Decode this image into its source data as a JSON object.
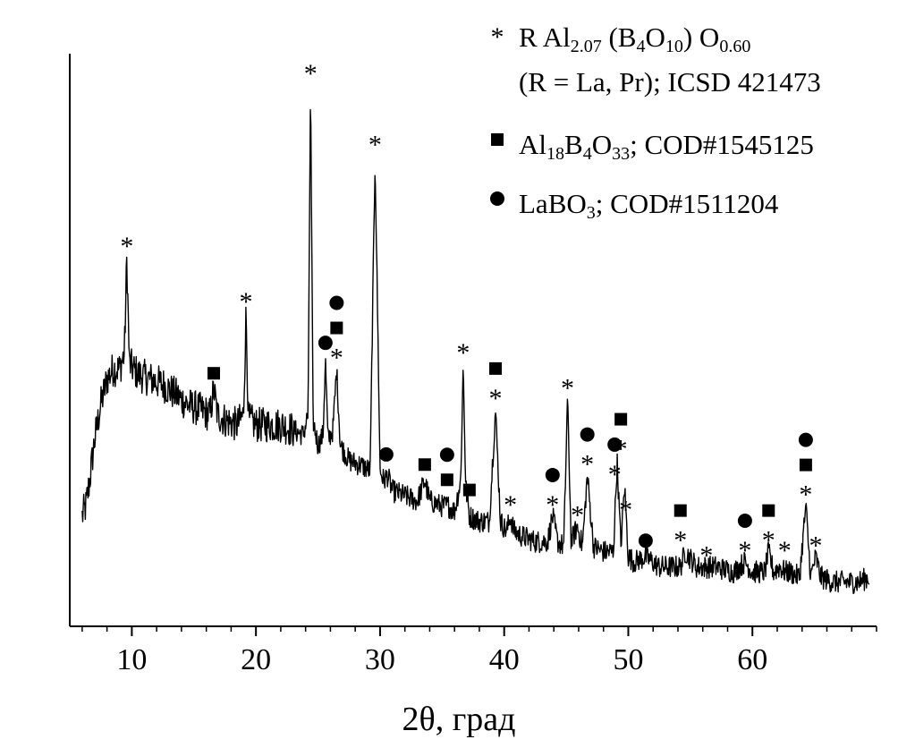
{
  "chart_data": {
    "type": "line",
    "xlabel": "2θ, град",
    "ylabel": "",
    "xlim": [
      5,
      70
    ],
    "ylim": [
      0,
      100
    ],
    "x_ticks": [
      10,
      20,
      30,
      40,
      50,
      60
    ],
    "x_tick_labels": [
      "10",
      "20",
      "30",
      "40",
      "50",
      "60"
    ],
    "x_minor_step": 2,
    "y_ticks_shown": false,
    "grid": false,
    "legend_position": "top-right",
    "series": [
      {
        "color": "#000000",
        "x": [
          6.0,
          6.3,
          6.6,
          7.0,
          7.5,
          8.0,
          8.5,
          9.0,
          9.4,
          9.6,
          9.8,
          10.5,
          11.5,
          12.5,
          13.5,
          14.5,
          15.5,
          16.3,
          16.6,
          16.9,
          17.5,
          18.5,
          19.0,
          19.2,
          19.4,
          20.0,
          21.0,
          22.0,
          23.0,
          23.8,
          24.2,
          24.4,
          24.6,
          25.0,
          25.4,
          25.6,
          25.8,
          26.2,
          26.5,
          26.8,
          27.5,
          28.5,
          29.2,
          29.6,
          30.0,
          30.3,
          30.6,
          31.0,
          32.0,
          33.0,
          33.6,
          34.0,
          35.0,
          35.5,
          36.0,
          36.5,
          36.7,
          36.9,
          37.2,
          38.0,
          38.8,
          39.3,
          39.7,
          40.2,
          40.5,
          40.8,
          41.5,
          42.5,
          43.5,
          43.9,
          44.3,
          44.8,
          45.1,
          45.4,
          45.9,
          46.3,
          46.7,
          47.2,
          48.0,
          48.8,
          49.1,
          49.4,
          49.7,
          50.0,
          50.5,
          51.4,
          52.5,
          53.5,
          54.2,
          54.6,
          55.5,
          56.3,
          57.0,
          58.5,
          59.4,
          60.0,
          61.0,
          61.3,
          61.7,
          62.2,
          62.6,
          63.0,
          63.8,
          64.3,
          64.7,
          65.1,
          65.5,
          66.5,
          67.5,
          68.5,
          69.4
        ],
        "y": [
          15,
          17,
          22,
          30,
          37,
          42,
          44,
          44,
          47,
          66,
          45,
          43,
          42,
          41,
          39,
          37,
          36,
          35,
          40,
          35,
          34,
          33,
          35,
          55,
          34,
          33,
          33,
          33,
          32,
          31,
          35,
          100,
          34,
          29,
          31,
          46,
          30,
          32,
          44,
          29,
          26,
          25,
          24,
          86,
          24,
          22,
          23,
          20,
          19,
          18,
          22,
          18,
          17,
          17,
          16,
          22,
          45,
          21,
          15,
          14,
          14,
          36,
          14,
          12,
          15,
          12,
          11,
          10,
          10,
          15,
          10,
          9,
          38,
          10,
          13,
          9,
          23,
          9,
          8,
          8,
          26,
          9,
          21,
          7,
          6,
          7,
          5,
          5,
          5,
          8,
          5,
          5,
          5,
          4,
          6,
          4,
          4,
          8,
          4,
          5,
          4,
          4,
          3,
          17,
          3,
          7,
          3,
          2,
          2,
          2,
          3
        ]
      }
    ],
    "peak_markers": [
      {
        "x": 9.6,
        "y": 66,
        "symbols": [
          "*"
        ]
      },
      {
        "x": 16.6,
        "y": 40,
        "symbols": [
          "■"
        ]
      },
      {
        "x": 19.2,
        "y": 55,
        "symbols": [
          "*"
        ]
      },
      {
        "x": 24.4,
        "y": 100,
        "symbols": [
          "*"
        ]
      },
      {
        "x": 25.6,
        "y": 46,
        "symbols": [
          "●"
        ]
      },
      {
        "x": 26.5,
        "y": 44,
        "symbols": [
          "*",
          "■",
          "●"
        ]
      },
      {
        "x": 29.6,
        "y": 86,
        "symbols": [
          "*"
        ]
      },
      {
        "x": 30.5,
        "y": 24,
        "symbols": [
          "●"
        ]
      },
      {
        "x": 33.6,
        "y": 22,
        "symbols": [
          "■"
        ]
      },
      {
        "x": 35.4,
        "y": 19,
        "symbols": [
          "■",
          "●"
        ]
      },
      {
        "x": 36.7,
        "y": 45,
        "symbols": [
          "*"
        ]
      },
      {
        "x": 37.2,
        "y": 17,
        "symbols": [
          "■"
        ]
      },
      {
        "x": 39.3,
        "y": 36,
        "symbols": [
          "*",
          "■"
        ]
      },
      {
        "x": 40.5,
        "y": 15,
        "symbols": [
          "*"
        ]
      },
      {
        "x": 43.9,
        "y": 15,
        "symbols": [
          "*",
          "●"
        ]
      },
      {
        "x": 45.1,
        "y": 38,
        "symbols": [
          "*"
        ]
      },
      {
        "x": 45.9,
        "y": 13,
        "symbols": [
          "*"
        ]
      },
      {
        "x": 46.7,
        "y": 23,
        "symbols": [
          "*",
          "●"
        ]
      },
      {
        "x": 48.9,
        "y": 21,
        "symbols": [
          "*",
          "●"
        ]
      },
      {
        "x": 49.4,
        "y": 26,
        "symbols": [
          "*",
          "■"
        ]
      },
      {
        "x": 49.8,
        "y": 14,
        "symbols": [
          "*"
        ]
      },
      {
        "x": 51.4,
        "y": 7,
        "symbols": [
          "●"
        ]
      },
      {
        "x": 54.2,
        "y": 8,
        "symbols": [
          "*",
          "■"
        ]
      },
      {
        "x": 56.3,
        "y": 5,
        "symbols": [
          "*"
        ]
      },
      {
        "x": 59.4,
        "y": 6,
        "symbols": [
          "*",
          "●"
        ]
      },
      {
        "x": 61.3,
        "y": 8,
        "symbols": [
          "*",
          "■"
        ]
      },
      {
        "x": 62.6,
        "y": 6,
        "symbols": [
          "*"
        ]
      },
      {
        "x": 64.3,
        "y": 17,
        "symbols": [
          "*",
          "■",
          "●"
        ]
      },
      {
        "x": 65.1,
        "y": 7,
        "symbols": [
          "*"
        ]
      }
    ],
    "legend": [
      {
        "symbol": "*",
        "parts": [
          {
            "t": "R Al",
            "s": ""
          },
          {
            "t": "2.07",
            "s": "sub"
          },
          {
            "t": " (B",
            "s": ""
          },
          {
            "t": "4",
            "s": "sub"
          },
          {
            "t": "O",
            "s": ""
          },
          {
            "t": "10",
            "s": "sub"
          },
          {
            "t": ") O",
            "s": ""
          },
          {
            "t": "0.60",
            "s": "sub"
          }
        ]
      },
      {
        "symbol": "",
        "parts": [
          {
            "t": "(R = La, Pr); ICSD 421473",
            "s": ""
          }
        ]
      },
      {
        "symbol": "■",
        "parts": [
          {
            "t": "Al",
            "s": ""
          },
          {
            "t": "18",
            "s": "sub"
          },
          {
            "t": "B",
            "s": ""
          },
          {
            "t": "4",
            "s": "sub"
          },
          {
            "t": "O",
            "s": ""
          },
          {
            "t": "33",
            "s": "sub"
          },
          {
            "t": "; COD#1545125",
            "s": ""
          }
        ]
      },
      {
        "symbol": "●",
        "parts": [
          {
            "t": "LaBO",
            "s": ""
          },
          {
            "t": "3",
            "s": "sub"
          },
          {
            "t": "; COD#1511204",
            "s": ""
          }
        ]
      }
    ]
  }
}
